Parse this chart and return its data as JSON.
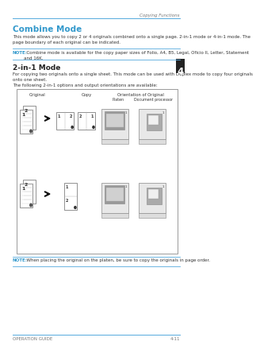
{
  "page_title": "Copying Functions",
  "section_title": "Combine Mode",
  "section_title_color": "#3399CC",
  "body_text1": "This mode allows you to copy 2 or 4 originals combined onto a single page. 2-in-1 mode or 4-in-1 mode. The\npage boundary of each original can be indicated.",
  "note_label": "NOTE:",
  "note_text1": "  Combine mode is available for the copy paper sizes of Folio, A4, B5, Legal, Oficio II, Letter, Statement\nand 16K.",
  "note_color": "#3399CC",
  "subsection_title": "2-in-1 Mode",
  "body_text2": "For copying two originals onto a single sheet. This mode can be used with Duplex mode to copy four originals\nonto one sheet.",
  "body_text3": "The following 2-in-1 options and output orientations are available:",
  "col_headers": [
    "Original",
    "Copy",
    "Orientation of Original"
  ],
  "sub_headers": [
    "Platen",
    "Document processor"
  ],
  "note_text2_label": "NOTE:",
  "note_text2": "  When placing the original on the platen, be sure to copy the originals in page order.",
  "footer_left": "OPERATION GUIDE",
  "footer_right": "4-11",
  "bg_color": "#ffffff",
  "line_color": "#55AADD",
  "sidebar_num": "4"
}
